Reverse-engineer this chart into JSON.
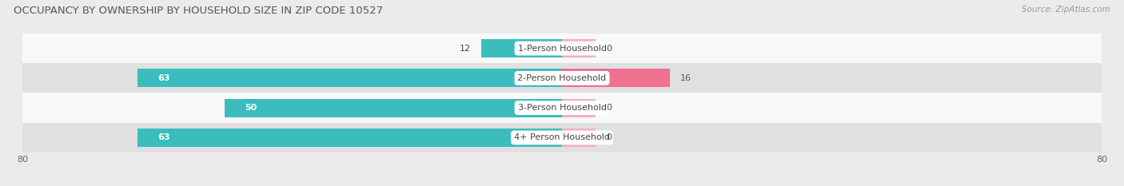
{
  "title": "OCCUPANCY BY OWNERSHIP BY HOUSEHOLD SIZE IN ZIP CODE 10527",
  "source": "Source: ZipAtlas.com",
  "categories": [
    "1-Person Household",
    "2-Person Household",
    "3-Person Household",
    "4+ Person Household"
  ],
  "owner_values": [
    12,
    63,
    50,
    63
  ],
  "renter_values": [
    0,
    16,
    0,
    0
  ],
  "owner_color": "#3bbdbd",
  "renter_color": "#f07090",
  "renter_color_light": "#f4afc0",
  "xlim": [
    -80,
    80
  ],
  "bar_height": 0.62,
  "bg_color": "#ebebeb",
  "row_colors": [
    "#f8f8f8",
    "#e0e0e0",
    "#f8f8f8",
    "#e0e0e0"
  ],
  "title_fontsize": 9.5,
  "axis_fontsize": 8,
  "bar_label_fontsize": 8,
  "cat_fontsize": 8,
  "source_fontsize": 7.5
}
